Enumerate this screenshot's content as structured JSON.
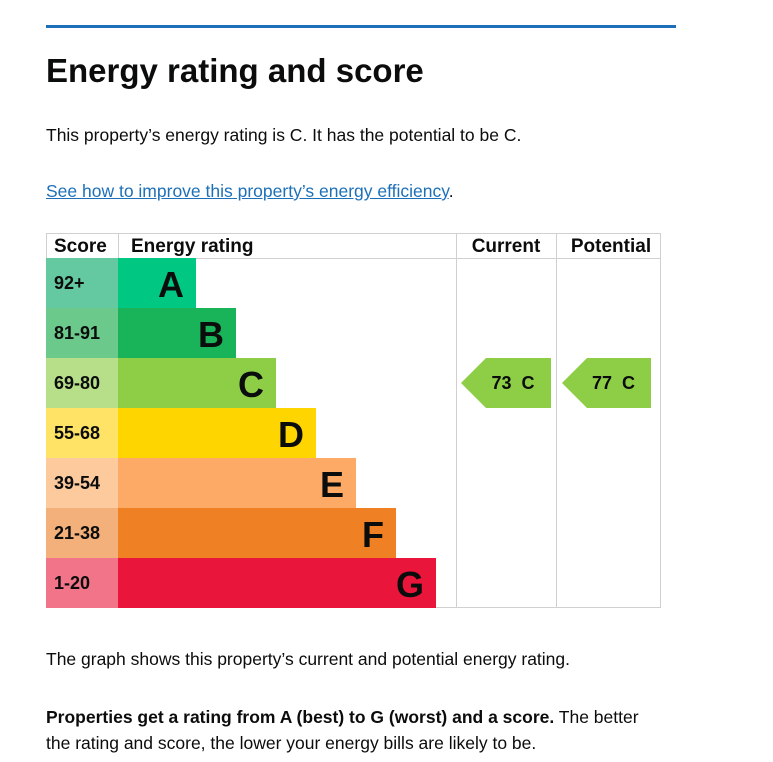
{
  "heading": "Energy rating and score",
  "intro": "This property’s energy rating is C. It has the potential to be C.",
  "link": "See how to improve this property’s energy efficiency",
  "link_suffix": ".",
  "caption": "The graph shows this property’s current and potential energy rating.",
  "note_bold": "Properties get a rating from A (best) to G (worst) and a score.",
  "note_rest": " The better the rating and score, the lower your energy bills are likely to be.",
  "chart_data": {
    "type": "bar",
    "headers": {
      "score": "Score",
      "rating": "Energy rating",
      "current": "Current",
      "potential": "Potential"
    },
    "bands": [
      {
        "letter": "A",
        "score": "92+",
        "color": "#00c781",
        "light": "#64c9a0"
      },
      {
        "letter": "B",
        "score": "81-91",
        "color": "#19b459",
        "light": "#6cc98c"
      },
      {
        "letter": "C",
        "score": "69-80",
        "color": "#8dce46",
        "light": "#b7df8a"
      },
      {
        "letter": "D",
        "score": "55-68",
        "color": "#ffd500",
        "light": "#ffe366"
      },
      {
        "letter": "E",
        "score": "39-54",
        "color": "#fcaa65",
        "light": "#fdca9e"
      },
      {
        "letter": "F",
        "score": "21-38",
        "color": "#ef8023",
        "light": "#f4b07a"
      },
      {
        "letter": "G",
        "score": "1-20",
        "color": "#e9153b",
        "light": "#f17489"
      }
    ],
    "current": {
      "score": 73,
      "letter": "C",
      "label": "73  C"
    },
    "potential": {
      "score": 77,
      "letter": "C",
      "label": "77  C"
    }
  }
}
